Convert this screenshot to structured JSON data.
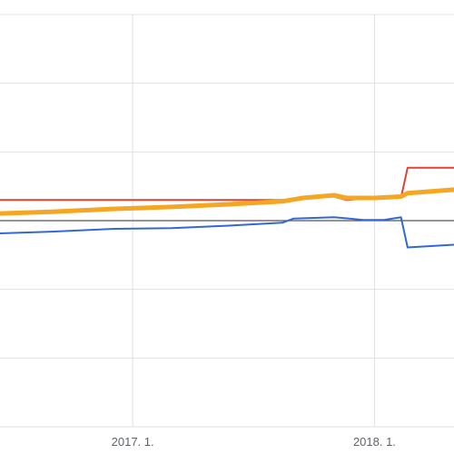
{
  "chart_data": {
    "type": "line",
    "title": "",
    "xlabel": "",
    "ylabel": "",
    "x_tick_labels": [
      {
        "label": "2017. 1.",
        "date": "2017-01-01"
      },
      {
        "label": "2018. 1.",
        "date": "2018-01-01"
      }
    ],
    "xlim": [
      "2016-06-01",
      "2018-05-01"
    ],
    "ylim": [
      -3,
      3
    ],
    "y_gridlines": [
      -3,
      -2,
      -1,
      0,
      1,
      2,
      3
    ],
    "baseline": 0,
    "grid": true,
    "legend": "none",
    "series": [
      {
        "color": "#db4437",
        "stroke_width": 2,
        "points": [
          [
            "2016-06-01",
            0.3
          ],
          [
            "2016-09-01",
            0.3
          ],
          [
            "2016-12-01",
            0.3
          ],
          [
            "2017-03-01",
            0.3
          ],
          [
            "2017-06-01",
            0.3
          ],
          [
            "2017-08-15",
            0.3
          ],
          [
            "2017-09-15",
            0.33
          ],
          [
            "2017-11-01",
            0.35
          ],
          [
            "2017-11-20",
            0.3
          ],
          [
            "2018-01-01",
            0.33
          ],
          [
            "2018-02-10",
            0.33
          ],
          [
            "2018-02-20",
            0.77
          ],
          [
            "2018-05-01",
            0.77
          ]
        ]
      },
      {
        "color": "#3367d6",
        "stroke_width": 2,
        "points": [
          [
            "2016-06-01",
            -0.19
          ],
          [
            "2016-09-01",
            -0.16
          ],
          [
            "2016-12-01",
            -0.12
          ],
          [
            "2017-03-01",
            -0.11
          ],
          [
            "2017-06-01",
            -0.07
          ],
          [
            "2017-08-15",
            -0.03
          ],
          [
            "2017-09-01",
            0.03
          ],
          [
            "2017-11-01",
            0.05
          ],
          [
            "2017-12-15",
            0.01
          ],
          [
            "2018-01-15",
            0.01
          ],
          [
            "2018-02-10",
            0.05
          ],
          [
            "2018-02-20",
            -0.39
          ],
          [
            "2018-05-01",
            -0.35
          ]
        ]
      },
      {
        "color": "#f5a623",
        "stroke_width": 5,
        "points": [
          [
            "2016-06-01",
            0.1
          ],
          [
            "2016-09-01",
            0.13
          ],
          [
            "2016-12-01",
            0.17
          ],
          [
            "2017-03-01",
            0.2
          ],
          [
            "2017-06-01",
            0.24
          ],
          [
            "2017-08-15",
            0.28
          ],
          [
            "2017-09-15",
            0.33
          ],
          [
            "2017-11-01",
            0.37
          ],
          [
            "2017-11-20",
            0.33
          ],
          [
            "2018-01-01",
            0.33
          ],
          [
            "2018-02-10",
            0.35
          ],
          [
            "2018-02-20",
            0.4
          ],
          [
            "2018-05-01",
            0.45
          ]
        ]
      }
    ],
    "colors": {
      "grid": "#e0e0e0",
      "baseline": "#555555",
      "tick_text": "#5f6368"
    }
  }
}
